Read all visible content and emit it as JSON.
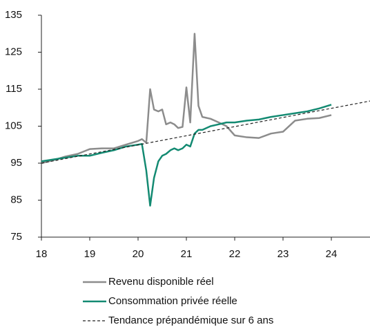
{
  "chart_data": {
    "type": "line",
    "x": [
      18,
      18.25,
      18.5,
      18.75,
      19,
      19.25,
      19.5,
      19.75,
      20,
      20.08,
      20.17,
      20.25,
      20.33,
      20.42,
      20.5,
      20.58,
      20.67,
      20.75,
      20.83,
      20.92,
      21,
      21.08,
      21.17,
      21.25,
      21.33,
      21.5,
      21.67,
      21.83,
      22,
      22.25,
      22.5,
      22.75,
      23,
      23.25,
      23.5,
      23.75,
      24
    ],
    "series": [
      {
        "name": "Revenu disponible réel",
        "color": "#8c8c8c",
        "values": [
          95,
          95.8,
          96.8,
          97.5,
          98.8,
          99,
          99,
          100,
          101,
          101.5,
          100.5,
          115,
          109.5,
          109,
          109.5,
          105.5,
          106,
          105.5,
          104.5,
          104.8,
          115.5,
          106,
          130,
          110.5,
          107.5,
          107,
          106,
          105,
          102.5,
          102,
          101.8,
          103,
          103.5,
          106.5,
          107,
          107.2,
          108
        ]
      },
      {
        "name": "Consommation privée réelle",
        "color": "#138a72",
        "values": [
          95.5,
          96,
          96.5,
          97,
          97,
          97.8,
          98.5,
          99.5,
          100,
          100.2,
          93,
          83.5,
          91,
          95.5,
          97,
          97.5,
          98.5,
          99,
          98.5,
          99,
          100,
          99.5,
          103,
          104,
          104,
          105,
          105.5,
          106,
          106,
          106.5,
          106.8,
          107.5,
          108,
          108.5,
          109,
          109.8,
          110.8
        ]
      },
      {
        "name": "Tendance prépandémique sur 6 ans",
        "color": "#222222",
        "dash": true,
        "x": [
          18,
          24.8
        ],
        "values": [
          95,
          111.8
        ]
      }
    ],
    "xlim": [
      18,
      24.8
    ],
    "xticks": [
      18,
      19,
      20,
      21,
      22,
      23,
      24
    ],
    "ylim": [
      75,
      135
    ],
    "yticks": [
      75,
      85,
      95,
      105,
      115,
      125,
      135
    ]
  }
}
